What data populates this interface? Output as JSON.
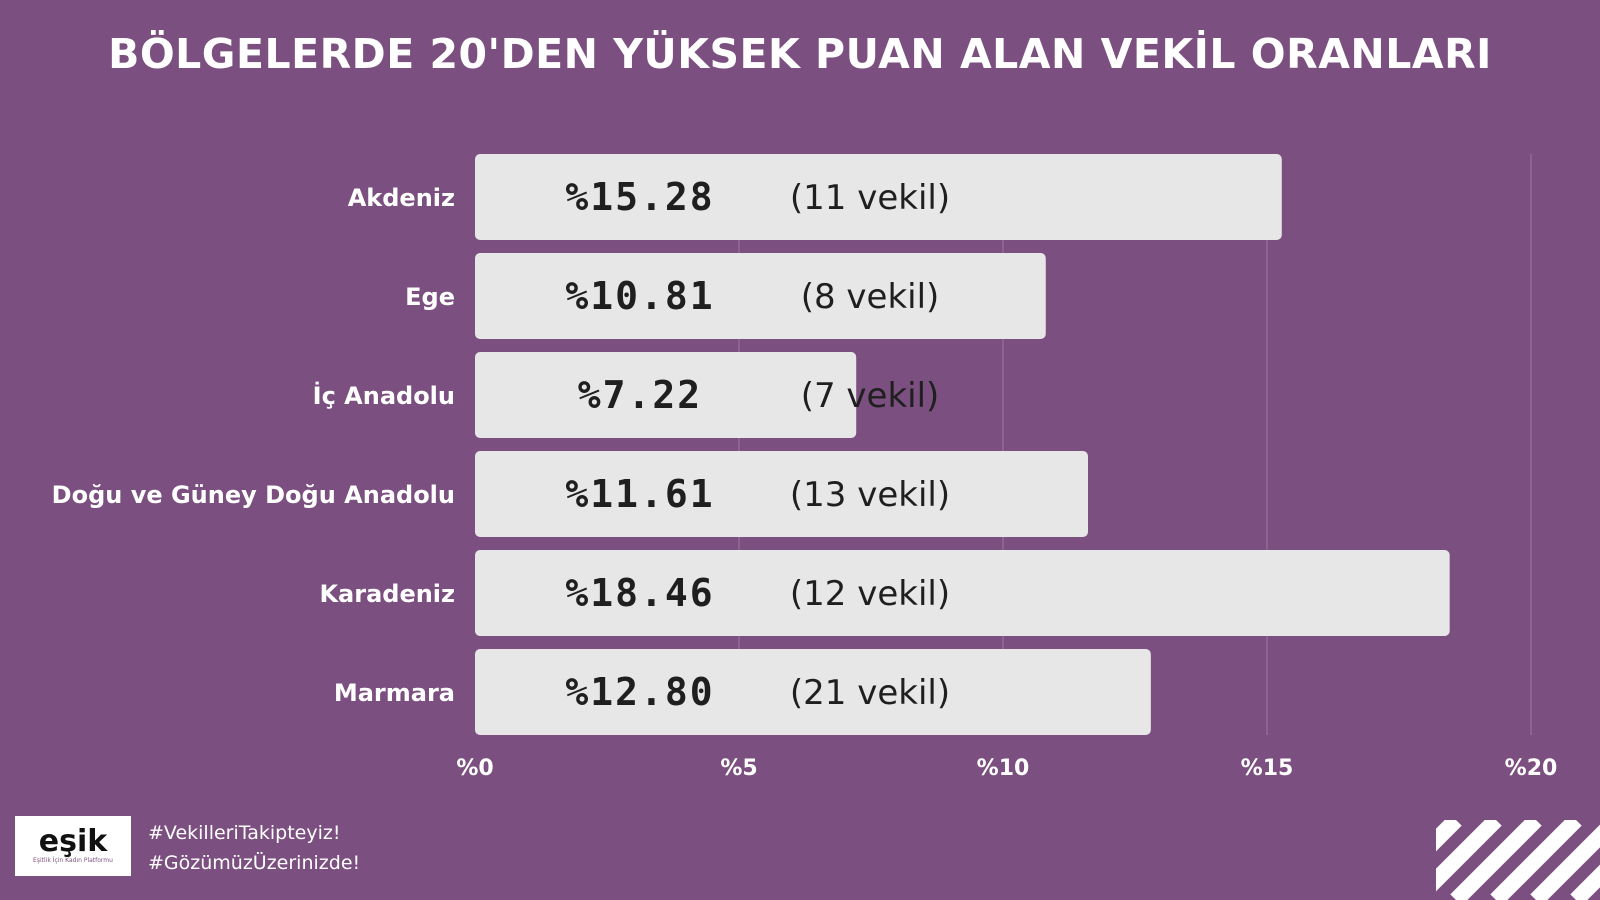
{
  "title": "BÖLGELERDE 20'DEN YÜKSEK PUAN ALAN VEKİL ORANLARI",
  "chart_data": {
    "type": "bar",
    "orientation": "horizontal",
    "categories": [
      "Akdeniz",
      "Ege",
      "İç Anadolu",
      "Doğu ve Güney Doğu Anadolu",
      "Karadeniz",
      "Marmara"
    ],
    "values": [
      15.28,
      10.81,
      7.22,
      11.61,
      18.46,
      12.8
    ],
    "value_labels": [
      "%15.28",
      "%10.81",
      "%7.22",
      "%11.61",
      "%18.46",
      "%12.80"
    ],
    "count_labels": [
      "(11 vekil)",
      "(8 vekil)",
      "(7 vekil)",
      "(13 vekil)",
      "(12 vekil)",
      "(21 vekil)"
    ],
    "xlim": [
      0,
      20
    ],
    "xticks": [
      0,
      5,
      10,
      15,
      20
    ],
    "xtick_labels": [
      "%0",
      "%5",
      "%10",
      "%15",
      "%20"
    ],
    "grid": true,
    "bar_color": "#e8e7e8",
    "background_color": "#7b4f7f",
    "title": "BÖLGELERDE 20'DEN YÜKSEK PUAN ALAN VEKİL ORANLARI"
  },
  "footer": {
    "logo_text": "eşik",
    "logo_subtext": "Eşitlik İçin Kadın Platformu",
    "hashtags": [
      "#VekilleriTakipteyiz!",
      "#GözümüzÜzerinizde!"
    ]
  }
}
